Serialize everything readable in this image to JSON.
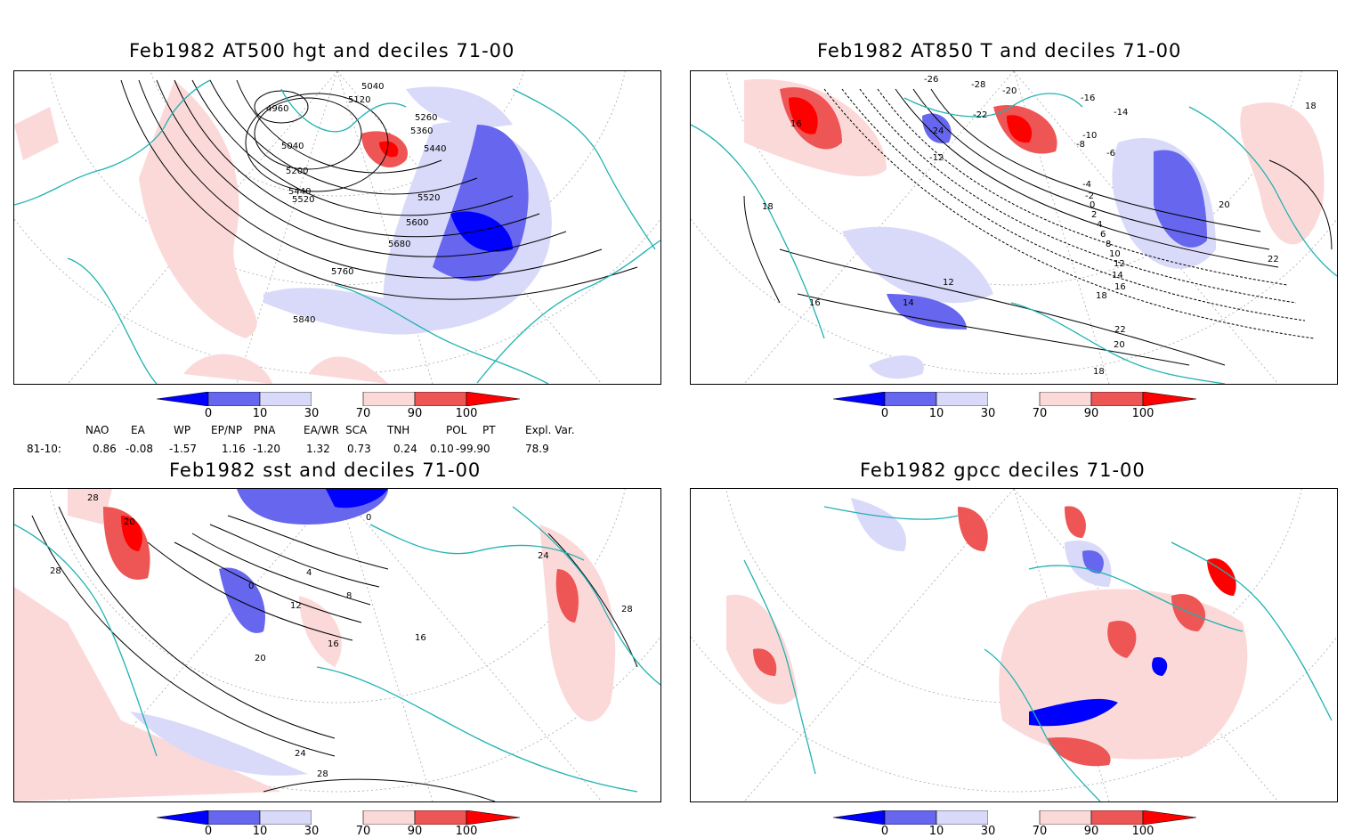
{
  "panels": [
    {
      "id": "p1",
      "title": "Feb1982 AT500 hgt and deciles 71-00",
      "contour_labels": [
        "5040",
        "5120",
        "4960",
        "5260",
        "5360",
        "5040",
        "5440",
        "5200",
        "5440",
        "5520",
        "5520",
        "5600",
        "5680",
        "5760",
        "5840"
      ]
    },
    {
      "id": "p2",
      "title": "Feb1982 AT850 T and deciles 71-00",
      "contour_labels": [
        "-26",
        "-28",
        "-20",
        "-16",
        "-14",
        "16",
        "-24",
        "-22",
        "-12",
        "-10",
        "-8",
        "-6",
        "-4",
        "-2",
        "0",
        "2",
        "4",
        "6",
        "8",
        "10",
        "12",
        "14",
        "16",
        "18",
        "18",
        "20",
        "22",
        "14",
        "12",
        "16",
        "18",
        "20",
        "22",
        "18"
      ]
    },
    {
      "id": "p3",
      "title": "Feb1982 sst and deciles 71-00",
      "contour_labels": [
        "28",
        "20",
        "28",
        "0",
        "4",
        "0",
        "8",
        "12",
        "16",
        "16",
        "20",
        "24",
        "28",
        "24",
        "28"
      ]
    },
    {
      "id": "p4",
      "title": "Feb1982 gpcc deciles 71-00",
      "contour_labels": []
    }
  ],
  "colorbar": {
    "ticks": [
      "0",
      "10",
      "30",
      "70",
      "90",
      "100"
    ],
    "colors": [
      "#0000ff",
      "#6666ee",
      "#d9d9f9",
      "#ffffff",
      "#fcd9d9",
      "#ee5555",
      "#ff0000"
    ]
  },
  "indices": {
    "headers": [
      "NAO",
      "EA",
      "WP",
      "EP/NP",
      "PNA",
      "EA/WR",
      "SCA",
      "TNH",
      "POL",
      "PT",
      "Expl. Var."
    ],
    "row_label": "81-10:",
    "values": [
      "0.86",
      "-0.08",
      "-1.57",
      "1.16",
      "-1.20",
      "1.32",
      "0.73",
      "0.24",
      "0.10",
      "-99.90",
      "78.9"
    ]
  },
  "colors": {
    "coast": "#20b2b2",
    "contour": "#000000",
    "frame": "#000000"
  }
}
